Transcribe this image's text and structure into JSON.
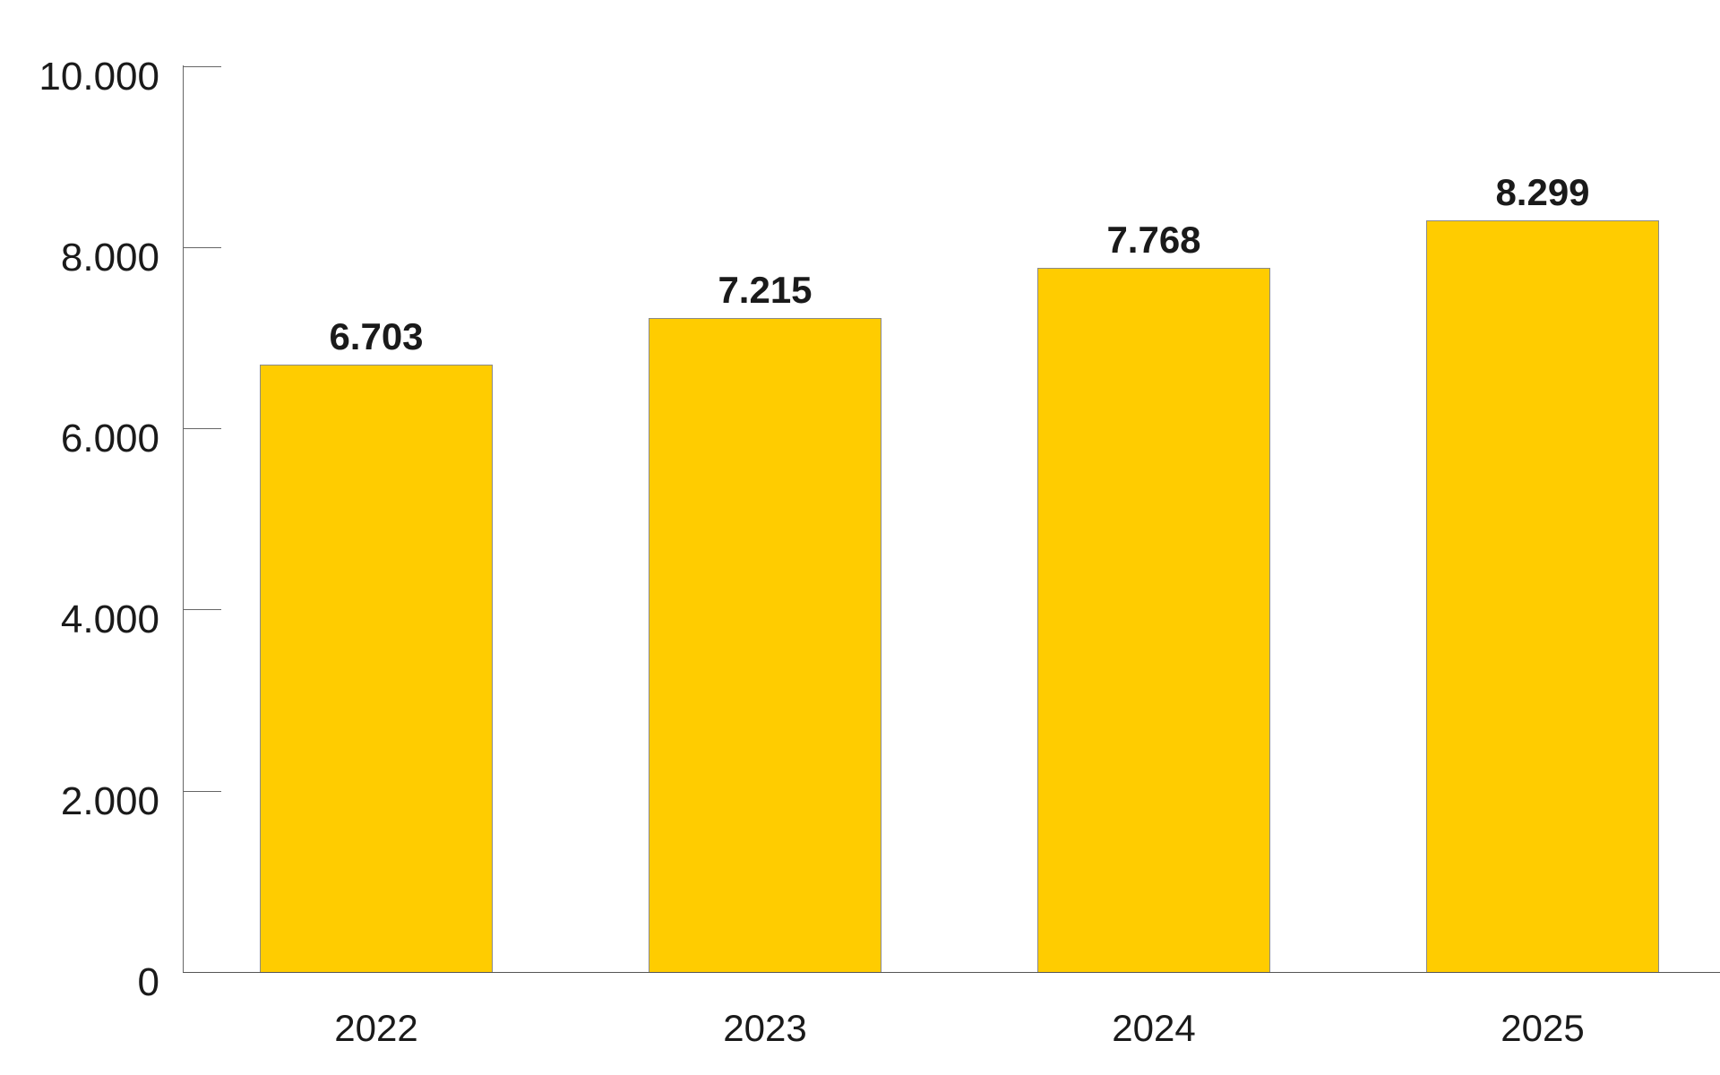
{
  "chart_data": {
    "type": "bar",
    "title": "",
    "xlabel": "",
    "ylabel": "",
    "categories": [
      "2022",
      "2023",
      "2024",
      "2025"
    ],
    "values": [
      6703,
      7215,
      7768,
      8299
    ],
    "value_labels": [
      "6.703",
      "7.215",
      "7.768",
      "8.299"
    ],
    "ylim": [
      0,
      10000
    ],
    "yticks": [
      0,
      2000,
      4000,
      6000,
      8000,
      10000
    ],
    "ytick_labels": [
      "0",
      "2.000",
      "4.000",
      "6.000",
      "8.000",
      "10.000"
    ],
    "grid": false,
    "legend": null,
    "bar_color": "#ffcc00",
    "bar_edge_color": "#8a8a8a"
  }
}
